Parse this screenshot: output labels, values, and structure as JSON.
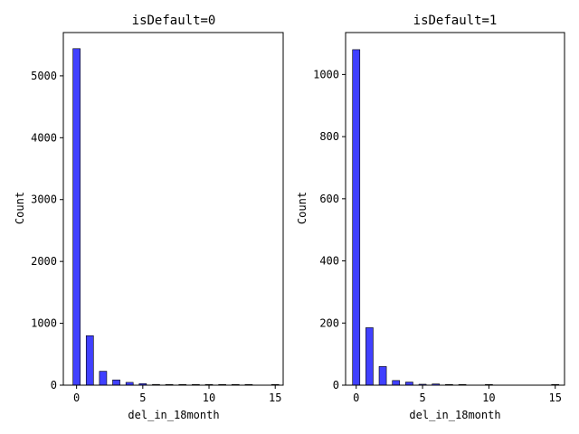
{
  "chart_data": [
    {
      "type": "bar",
      "title": "isDefault=0",
      "xlabel": "del_in_18month",
      "ylabel": "Count",
      "xlim": [
        -1,
        15.6
      ],
      "ylim": [
        0,
        5700
      ],
      "xticks": [
        0,
        5,
        10,
        15
      ],
      "yticks": [
        0,
        1000,
        2000,
        3000,
        4000,
        5000
      ],
      "bar_width": 0.55,
      "bar_color": "#0000ff",
      "x": [
        0,
        1,
        2,
        3,
        4,
        5,
        6,
        7,
        8,
        9,
        10,
        11,
        12,
        13,
        14,
        15
      ],
      "values": [
        5440,
        800,
        225,
        85,
        45,
        25,
        12,
        8,
        5,
        5,
        2,
        1,
        1,
        1,
        0,
        1
      ]
    },
    {
      "type": "bar",
      "title": "isDefault=1",
      "xlabel": "del_in_18month",
      "ylabel": "Count",
      "xlim": [
        -0.8,
        15.7
      ],
      "ylim": [
        0,
        1135
      ],
      "xticks": [
        0,
        5,
        10,
        15
      ],
      "yticks": [
        0,
        200,
        400,
        600,
        800,
        1000
      ],
      "bar_width": 0.55,
      "bar_color": "#0000ff",
      "x": [
        0,
        1,
        2,
        3,
        4,
        5,
        6,
        7,
        8,
        9,
        10,
        11,
        12,
        13,
        14,
        15
      ],
      "values": [
        1080,
        185,
        60,
        15,
        10,
        3,
        4,
        1,
        1,
        0,
        2,
        0,
        0,
        0,
        0,
        2
      ]
    }
  ]
}
